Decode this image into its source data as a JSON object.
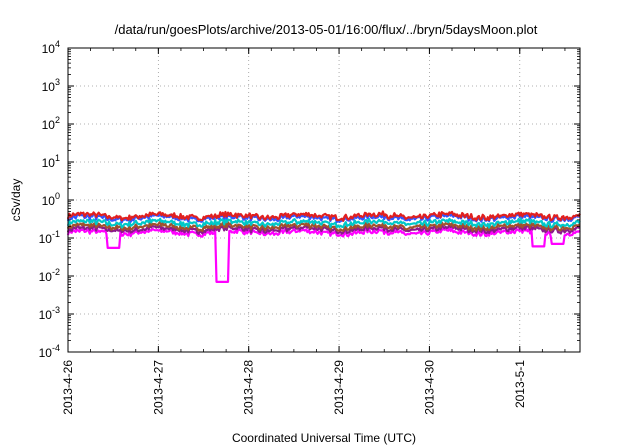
{
  "chart_data": {
    "type": "line",
    "title": "/data/run/goesPlots/archive/2013-05-01/16:00/flux/../bryn/5daysMoon.plot",
    "xlabel": "Coordinated Universal Time (UTC)",
    "ylabel": "cSv/day",
    "yscale": "log",
    "ylim": [
      0.0001,
      10000
    ],
    "xlim": [
      "2013-04-26T00:00",
      "2013-05-01T16:00"
    ],
    "grid": true,
    "y_ticks": [
      {
        "value": 0.0001,
        "base": "10",
        "exp": "-4"
      },
      {
        "value": 0.001,
        "base": "10",
        "exp": "-3"
      },
      {
        "value": 0.01,
        "base": "10",
        "exp": "-2"
      },
      {
        "value": 0.1,
        "base": "10",
        "exp": "-1"
      },
      {
        "value": 1,
        "base": "10",
        "exp": "0"
      },
      {
        "value": 10,
        "base": "10",
        "exp": "1"
      },
      {
        "value": 100,
        "base": "10",
        "exp": "2"
      },
      {
        "value": 1000,
        "base": "10",
        "exp": "3"
      },
      {
        "value": 10000,
        "base": "10",
        "exp": "4"
      }
    ],
    "x_ticks": [
      {
        "value": "2013-04-26T00:00",
        "label": "2013-4-26"
      },
      {
        "value": "2013-04-27T00:00",
        "label": "2013-4-27"
      },
      {
        "value": "2013-04-28T00:00",
        "label": "2013-4-28"
      },
      {
        "value": "2013-04-29T00:00",
        "label": "2013-4-29"
      },
      {
        "value": "2013-04-30T00:00",
        "label": "2013-4-30"
      },
      {
        "value": "2013-05-01T00:00",
        "label": "2013-5-1"
      }
    ],
    "series": [
      {
        "color": "#ff00ff",
        "base": 0.14,
        "dips": [
          {
            "x": "2013-04-26T12:00",
            "y": 0.055
          },
          {
            "x": "2013-04-27T17:00",
            "y": 0.007
          },
          {
            "x": "2013-05-01T05:00",
            "y": 0.06
          },
          {
            "x": "2013-05-01T10:00",
            "y": 0.07
          }
        ]
      },
      {
        "color": "#8b1a8b",
        "base": 0.17
      },
      {
        "color": "#a0522d",
        "base": 0.2
      },
      {
        "color": "#00c8c8",
        "base": 0.25
      },
      {
        "color": "#3355ff",
        "base": 0.34
      },
      {
        "color": "#e02020",
        "base": 0.38
      }
    ]
  }
}
